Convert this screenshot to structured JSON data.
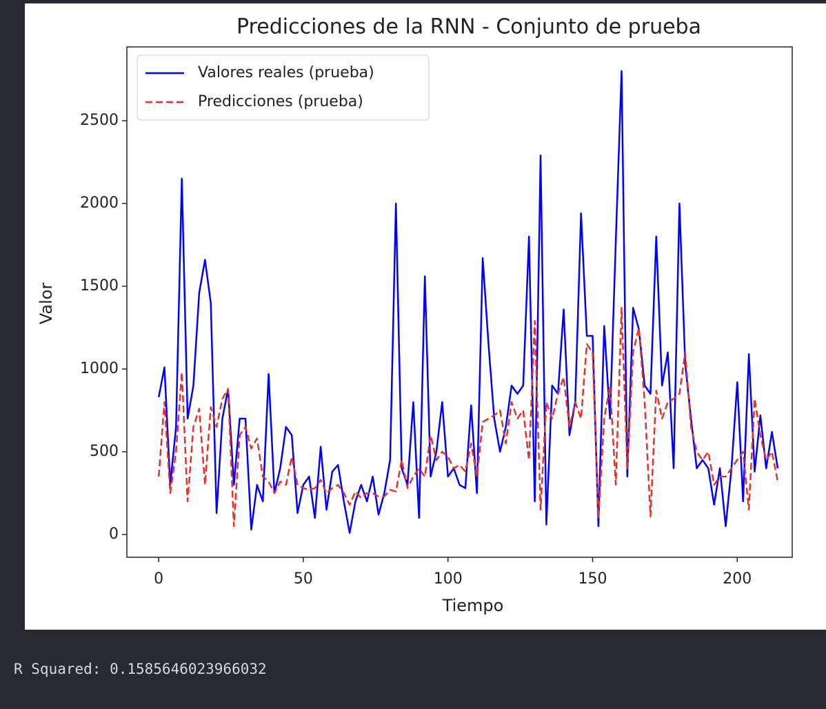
{
  "chart_data": {
    "type": "line",
    "title": "Predicciones de la RNN - Conjunto de prueba",
    "xlabel": "Tiempo",
    "ylabel": "Valor",
    "x": [
      0,
      2,
      4,
      6,
      8,
      10,
      12,
      14,
      16,
      18,
      20,
      22,
      24,
      26,
      28,
      30,
      32,
      34,
      36,
      38,
      40,
      42,
      44,
      46,
      48,
      50,
      52,
      54,
      56,
      58,
      60,
      62,
      64,
      66,
      68,
      70,
      72,
      74,
      76,
      78,
      80,
      82,
      84,
      86,
      88,
      90,
      92,
      94,
      96,
      98,
      100,
      102,
      104,
      106,
      108,
      110,
      112,
      114,
      116,
      118,
      120,
      122,
      124,
      126,
      128,
      130,
      132,
      134,
      136,
      138,
      140,
      142,
      144,
      146,
      148,
      150,
      152,
      154,
      156,
      158,
      160,
      162,
      164,
      166,
      168,
      170,
      172,
      174,
      176,
      178,
      180,
      182,
      184,
      186,
      188,
      190,
      192,
      194,
      196,
      198,
      200,
      202,
      204,
      206,
      208,
      210,
      212,
      214
    ],
    "series": [
      {
        "name": "Valores reales (prueba)",
        "color": "#0000ff",
        "dashed": false,
        "values": [
          830,
          1010,
          300,
          650,
          2150,
          700,
          900,
          1460,
          1660,
          1400,
          130,
          700,
          880,
          300,
          700,
          700,
          30,
          300,
          200,
          970,
          250,
          400,
          650,
          600,
          130,
          300,
          350,
          100,
          530,
          150,
          380,
          420,
          200,
          10,
          200,
          300,
          200,
          350,
          120,
          250,
          450,
          2000,
          400,
          300,
          800,
          100,
          1560,
          350,
          500,
          800,
          350,
          400,
          300,
          280,
          780,
          250,
          1670,
          1150,
          700,
          500,
          650,
          900,
          850,
          900,
          1800,
          200,
          2290,
          60,
          900,
          850,
          1360,
          600,
          800,
          1940,
          1200,
          1200,
          50,
          1260,
          700,
          1770,
          2800,
          350,
          1370,
          1240,
          900,
          850,
          1800,
          900,
          1100,
          400,
          2000,
          1030,
          700,
          400,
          450,
          400,
          180,
          400,
          50,
          400,
          920,
          200,
          1090,
          380,
          720,
          400,
          620,
          400
        ]
      },
      {
        "name": "Predicciones (prueba)",
        "color": "#e8302a",
        "dashed": true,
        "values": [
          350,
          800,
          250,
          500,
          980,
          200,
          650,
          760,
          300,
          770,
          650,
          820,
          880,
          50,
          600,
          650,
          520,
          580,
          350,
          320,
          250,
          320,
          300,
          470,
          300,
          280,
          270,
          280,
          330,
          250,
          280,
          300,
          250,
          180,
          260,
          220,
          250,
          250,
          230,
          230,
          270,
          260,
          450,
          280,
          350,
          400,
          350,
          600,
          450,
          500,
          470,
          400,
          420,
          380,
          550,
          350,
          680,
          700,
          720,
          750,
          550,
          800,
          700,
          750,
          450,
          1290,
          150,
          800,
          700,
          850,
          950,
          650,
          800,
          700,
          1150,
          1100,
          100,
          700,
          900,
          300,
          1370,
          400,
          1100,
          1250,
          800,
          110,
          870,
          700,
          800,
          820,
          850,
          1100,
          650,
          500,
          450,
          500,
          300,
          350,
          350,
          400,
          450,
          500,
          150,
          820,
          600,
          450,
          500,
          320
        ]
      }
    ],
    "xlim": [
      -11,
      219
    ],
    "ylim": [
      -137.5,
      2946
    ],
    "xticks": [
      0,
      50,
      100,
      150,
      200
    ],
    "yticks": [
      0,
      500,
      1000,
      1500,
      2000,
      2500
    ],
    "legend": "upper left",
    "grid": false
  },
  "output_text": "R Squared: 0.1585646023966032"
}
